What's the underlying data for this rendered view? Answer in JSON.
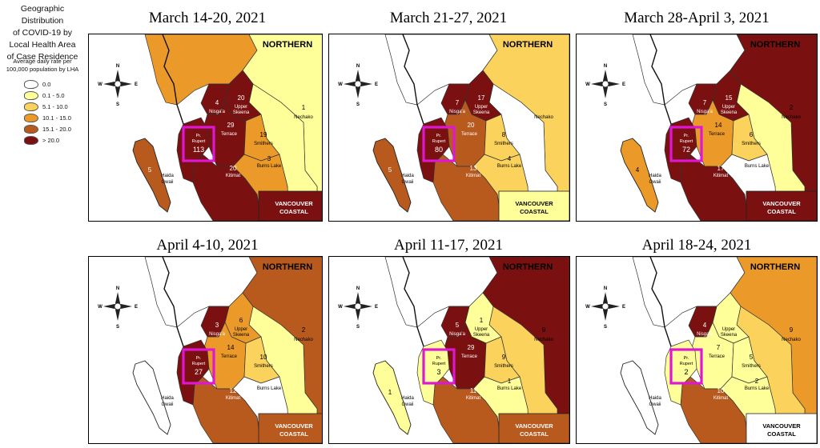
{
  "legend": {
    "title_lines": [
      "Geographic Distribution",
      "of COVID-19 by",
      "Local Health Area",
      "of Case Residence"
    ],
    "subtitle_lines": [
      "Average daily rate per",
      "100,000 population by LHA"
    ],
    "items": [
      {
        "label": "0.0",
        "color": "#ffffff"
      },
      {
        "label": "0.1 - 5.0",
        "color": "#ffff99"
      },
      {
        "label": "5.1 - 10.0",
        "color": "#fbd25c"
      },
      {
        "label": "10.1 - 15.0",
        "color": "#eb9a2a"
      },
      {
        "label": "15.1 - 20.0",
        "color": "#b85a1e"
      },
      {
        "label": "> 20.0",
        "color": "#7a1010"
      }
    ]
  },
  "static_labels": {
    "northern": "NORTHERN",
    "vancouver_coastal": [
      "VANCOUVER",
      "COASTAL"
    ],
    "pr_rupert": [
      "Pr.",
      "Rupert"
    ],
    "haida": [
      "Haida",
      "Gwaii"
    ],
    "nisgaa": "Nisga'a",
    "upper_skeena": [
      "Upper",
      "Skeena"
    ],
    "terrace": "Terrace",
    "smithers": "Smithers",
    "nechako": "Nechako",
    "burns_lake": "Burns Lake",
    "kitimat": "Kitimat",
    "compass": {
      "n": "N",
      "s": "S",
      "e": "E",
      "w": "W"
    }
  },
  "panels": [
    {
      "title": "March 14-20, 2021",
      "rates": {
        "pr_rupert": "113",
        "haida": "5",
        "nisgaa": "4",
        "upper_skeena": "20",
        "terrace": "29",
        "smithers": "19",
        "nechako": "1",
        "burns_lake": "3",
        "kitimat": "20"
      },
      "colors": {
        "northern_bg": "#eb9a2a",
        "ne_strip": "#ffff99",
        "nechako_fill": "#ffff99",
        "haida": "#b85a1e",
        "nisgaa": "#7a1010",
        "upper_skeena": "#7a1010",
        "terrace": "#7a1010",
        "smithers": "#eb9a2a",
        "burns_lake": "#eb9a2a",
        "kitimat": "#7a1010",
        "pr_rupert": "#7a1010",
        "vancouver": "#7a1010"
      }
    },
    {
      "title": "March 21-27, 2021",
      "rates": {
        "pr_rupert": "80",
        "haida": "5",
        "nisgaa": "7",
        "upper_skeena": "17",
        "terrace": "20",
        "smithers": "8",
        "nechako": "",
        "burns_lake": "4",
        "kitimat": "13"
      },
      "colors": {
        "northern_bg": "#ffffff",
        "ne_strip": "#fbd25c",
        "nechako_fill": "#ffffff",
        "haida": "#b85a1e",
        "nisgaa": "#7a1010",
        "upper_skeena": "#7a1010",
        "terrace": "#b85a1e",
        "smithers": "#fbd25c",
        "burns_lake": "#fbd25c",
        "kitimat": "#b85a1e",
        "pr_rupert": "#7a1010",
        "vancouver": "#ffff99"
      }
    },
    {
      "title": "March 28-April 3, 2021",
      "rates": {
        "pr_rupert": "72",
        "haida": "4",
        "nisgaa": "7",
        "upper_skeena": "15",
        "terrace": "14",
        "smithers": "6",
        "nechako": "2",
        "burns_lake": "",
        "kitimat": "17"
      },
      "colors": {
        "northern_bg": "#ffffff",
        "ne_strip": "#7a1010",
        "nechako_fill": "#ffff99",
        "haida": "#eb9a2a",
        "nisgaa": "#7a1010",
        "upper_skeena": "#7a1010",
        "terrace": "#eb9a2a",
        "smithers": "#fbd25c",
        "burns_lake": "#ffffff",
        "kitimat": "#7a1010",
        "pr_rupert": "#7a1010",
        "vancouver": "#7a1010"
      }
    },
    {
      "title": "April 4-10, 2021",
      "rates": {
        "pr_rupert": "27",
        "haida": "",
        "nisgaa": "3",
        "upper_skeena": "6",
        "terrace": "14",
        "smithers": "10",
        "nechako": "2",
        "burns_lake": "",
        "kitimat": "12"
      },
      "colors": {
        "northern_bg": "#ffffff",
        "ne_strip": "#b85a1e",
        "nechako_fill": "#ffff99",
        "haida": "#ffffff",
        "nisgaa": "#7a1010",
        "upper_skeena": "#eb9a2a",
        "terrace": "#eb9a2a",
        "smithers": "#fbd25c",
        "burns_lake": "#ffffff",
        "kitimat": "#b85a1e",
        "pr_rupert": "#7a1010",
        "vancouver": "#b85a1e"
      }
    },
    {
      "title": "April 11-17, 2021",
      "rates": {
        "pr_rupert": "3",
        "haida": "1",
        "nisgaa": "5",
        "upper_skeena": "1",
        "terrace": "29",
        "smithers": "9",
        "nechako": "9",
        "burns_lake": "1",
        "kitimat": "11"
      },
      "colors": {
        "northern_bg": "#ffffff",
        "ne_strip": "#7a1010",
        "nechako_fill": "#fbd25c",
        "haida": "#ffff99",
        "nisgaa": "#7a1010",
        "upper_skeena": "#ffff99",
        "terrace": "#7a1010",
        "smithers": "#fbd25c",
        "burns_lake": "#ffff99",
        "kitimat": "#b85a1e",
        "pr_rupert": "#ffff99",
        "vancouver": "#b85a1e"
      }
    },
    {
      "title": "April 18-24, 2021",
      "rates": {
        "pr_rupert": "2",
        "haida": "",
        "nisgaa": "4",
        "upper_skeena": "",
        "terrace": "7",
        "smithers": "5",
        "nechako": "9",
        "burns_lake": "2",
        "kitimat": "10"
      },
      "colors": {
        "northern_bg": "#ffffff",
        "ne_strip": "#eb9a2a",
        "nechako_fill": "#fbd25c",
        "haida": "#ffffff",
        "nisgaa": "#7a1010",
        "upper_skeena": "#ffff99",
        "terrace": "#ffff99",
        "smithers": "#ffff99",
        "burns_lake": "#ffff99",
        "kitimat": "#b85a1e",
        "pr_rupert": "#ffff99",
        "vancouver": "#ffffff"
      }
    }
  ]
}
